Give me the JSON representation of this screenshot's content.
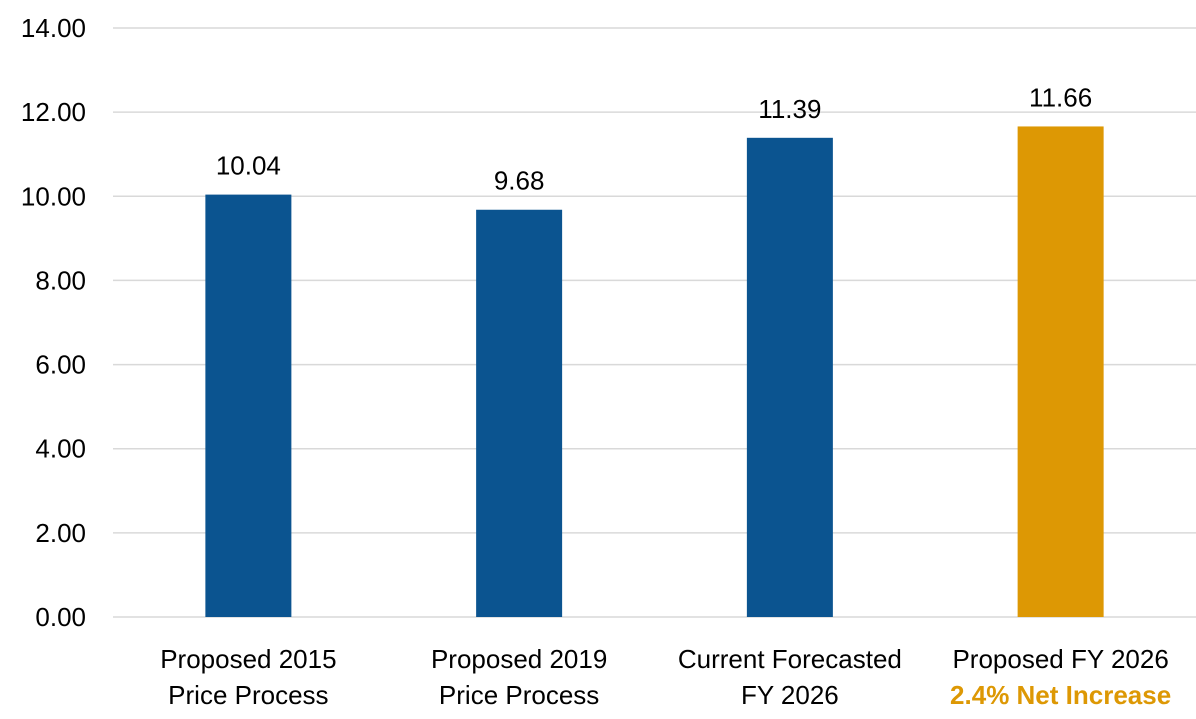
{
  "chart_data": {
    "type": "bar",
    "categories": [
      [
        "Proposed 2015",
        "Price Process"
      ],
      [
        "Proposed 2019",
        "Price Process"
      ],
      [
        "Current Forecasted",
        "FY 2026"
      ],
      [
        "Proposed FY 2026"
      ]
    ],
    "values": [
      10.04,
      9.68,
      11.39,
      11.66
    ],
    "data_labels": [
      "10.04",
      "9.68",
      "11.39",
      "11.66"
    ],
    "y_ticks": [
      "0.00",
      "2.00",
      "4.00",
      "6.00",
      "8.00",
      "10.00",
      "12.00",
      "14.00"
    ],
    "ylim": [
      0,
      14
    ],
    "grid": true,
    "bar_colors": [
      "#0b5490",
      "#0b5490",
      "#0b5490",
      "#dd9804"
    ],
    "annotation": {
      "text": "2.4% Net Increase",
      "color": "#dd9804",
      "category_index": 3
    },
    "title": "",
    "xlabel": "",
    "ylabel": ""
  }
}
